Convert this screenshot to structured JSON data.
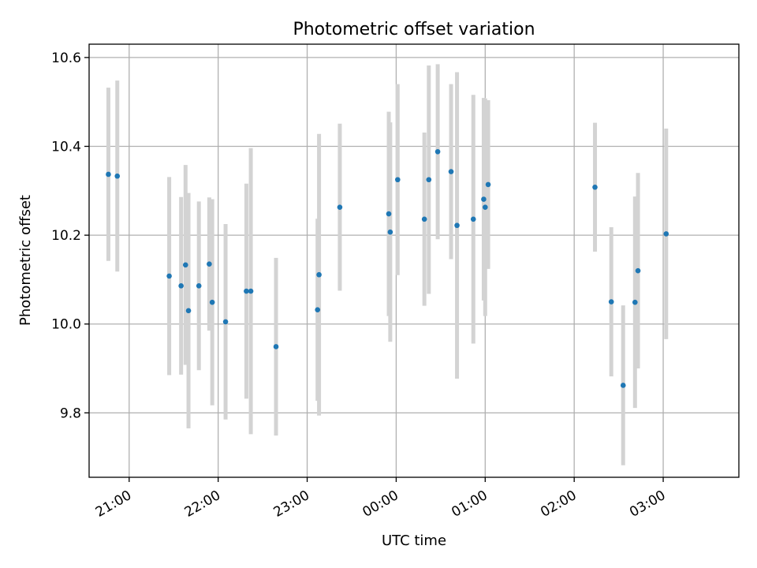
{
  "chart_data": {
    "type": "scatter",
    "title": "Photometric offset variation",
    "xlabel": "UTC time",
    "ylabel": "Photometric offset",
    "x_unit": "time (HH:MM UTC)",
    "xlim": [
      "20:33",
      "03:51"
    ],
    "ylim": [
      9.655,
      10.63
    ],
    "x_ticks": [
      "21:00",
      "22:00",
      "23:00",
      "00:00",
      "01:00",
      "02:00",
      "03:00"
    ],
    "y_ticks": [
      "9.8",
      "10.0",
      "10.2",
      "10.4",
      "10.6"
    ],
    "grid": true,
    "legend": "none",
    "colors": {
      "point": "#1f77b4",
      "errorbar": "#d3d3d3",
      "grid": "#b0b0b0"
    },
    "series": [
      {
        "points": [
          {
            "x": "20:46",
            "y": 10.337,
            "yerr": 0.195
          },
          {
            "x": "20:52",
            "y": 10.333,
            "yerr": 0.215
          },
          {
            "x": "21:27",
            "y": 10.108,
            "yerr": 0.223
          },
          {
            "x": "21:35",
            "y": 10.086,
            "yerr": 0.2
          },
          {
            "x": "21:38",
            "y": 10.133,
            "yerr": 0.225
          },
          {
            "x": "21:40",
            "y": 10.03,
            "yerr": 0.265
          },
          {
            "x": "21:47",
            "y": 10.086,
            "yerr": 0.19
          },
          {
            "x": "21:54",
            "y": 10.135,
            "yerr": 0.15
          },
          {
            "x": "21:56",
            "y": 10.049,
            "yerr": 0.232
          },
          {
            "x": "22:05",
            "y": 10.005,
            "yerr": 0.22
          },
          {
            "x": "22:19",
            "y": 10.074,
            "yerr": 0.242
          },
          {
            "x": "22:22",
            "y": 10.074,
            "yerr": 0.322
          },
          {
            "x": "22:39",
            "y": 9.949,
            "yerr": 0.2
          },
          {
            "x": "23:07",
            "y": 10.032,
            "yerr": 0.205
          },
          {
            "x": "23:08",
            "y": 10.111,
            "yerr": 0.317
          },
          {
            "x": "23:22",
            "y": 10.263,
            "yerr": 0.188
          },
          {
            "x": "23:55",
            "y": 10.248,
            "yerr": 0.23
          },
          {
            "x": "23:56",
            "y": 10.207,
            "yerr": 0.247
          },
          {
            "x": "00:01",
            "y": 10.325,
            "yerr": 0.215
          },
          {
            "x": "00:19",
            "y": 10.236,
            "yerr": 0.195
          },
          {
            "x": "00:22",
            "y": 10.325,
            "yerr": 0.257
          },
          {
            "x": "00:28",
            "y": 10.388,
            "yerr": 0.197
          },
          {
            "x": "00:37",
            "y": 10.343,
            "yerr": 0.197
          },
          {
            "x": "00:41",
            "y": 10.222,
            "yerr": 0.345
          },
          {
            "x": "00:52",
            "y": 10.236,
            "yerr": 0.28
          },
          {
            "x": "00:59",
            "y": 10.281,
            "yerr": 0.228
          },
          {
            "x": "01:00",
            "y": 10.263,
            "yerr": 0.245
          },
          {
            "x": "01:02",
            "y": 10.314,
            "yerr": 0.19
          },
          {
            "x": "02:14",
            "y": 10.308,
            "yerr": 0.145
          },
          {
            "x": "02:25",
            "y": 10.05,
            "yerr": 0.168
          },
          {
            "x": "02:33",
            "y": 9.862,
            "yerr": 0.18
          },
          {
            "x": "02:41",
            "y": 10.049,
            "yerr": 0.238
          },
          {
            "x": "02:43",
            "y": 10.12,
            "yerr": 0.22
          },
          {
            "x": "03:02",
            "y": 10.203,
            "yerr": 0.237
          }
        ]
      }
    ]
  }
}
